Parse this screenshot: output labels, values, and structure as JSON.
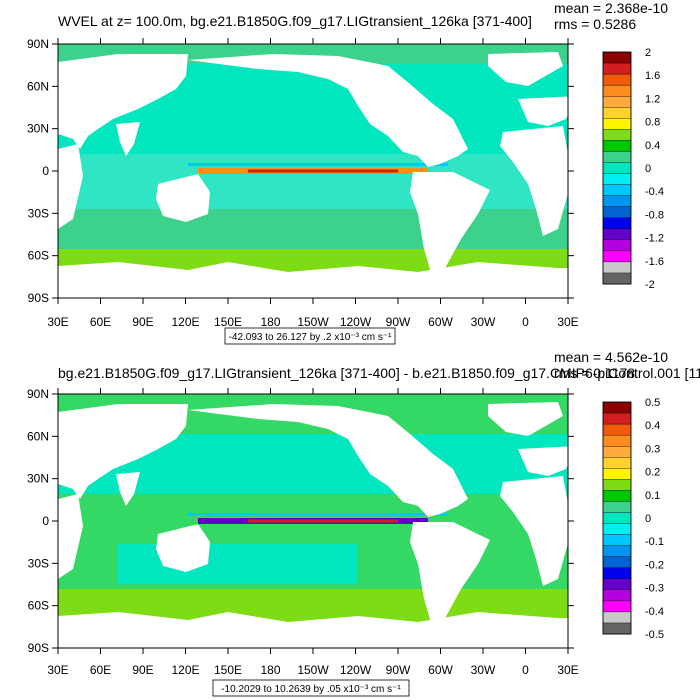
{
  "chart_data": [
    {
      "type": "heatmap",
      "title": "WVEL at z= 100.0m, bg.e21.B1850G.f09_g17.LIGtransient_126ka [371-400]",
      "stats": {
        "mean": "mean = 2.368e-10",
        "rms": "rms = 0.5286"
      },
      "x_ticks": [
        "30E",
        "60E",
        "90E",
        "120E",
        "150E",
        "180",
        "150W",
        "120W",
        "90W",
        "60W",
        "30W",
        "0",
        "30E"
      ],
      "y_ticks": [
        "90N",
        "60N",
        "30N",
        "0",
        "30S",
        "60S",
        "90S"
      ],
      "xlim": [
        30,
        390
      ],
      "ylim": [
        -90,
        90
      ],
      "range_label": "-42.093 to 26.127 by .2 x10⁻³ cm s⁻¹",
      "colorbar": {
        "labels": [
          "2",
          "1.6",
          "1.2",
          "0.8",
          "0.4",
          "0",
          "-0.4",
          "-0.8",
          "-1.2",
          "-1.6",
          "-2"
        ],
        "colors": [
          "#8b0000",
          "#d21e1e",
          "#f05a0a",
          "#ff8c1e",
          "#ffaa3c",
          "#ffd22d",
          "#fff500",
          "#7ddc14",
          "#00c800",
          "#3cd28c",
          "#00e6be",
          "#00f0f0",
          "#00c8ff",
          "#0096f0",
          "#0064d2",
          "#0000f0",
          "#6400c8",
          "#b400dc",
          "#ff00ff",
          "#c8c8c8",
          "#646464"
        ]
      }
    },
    {
      "type": "heatmap",
      "title": "bg.e21.B1850G.f09_g17.LIGtransient_126ka [371-400] - b.e21.B1850.f09_g17.CMIP6-piControl.001 [11",
      "stats": {
        "mean": "mean = 4.562e-10",
        "rms": "rms = 0.1178"
      },
      "x_ticks": [
        "30E",
        "60E",
        "90E",
        "120E",
        "150E",
        "180",
        "150W",
        "120W",
        "90W",
        "60W",
        "30W",
        "0",
        "30E"
      ],
      "y_ticks": [
        "90N",
        "60N",
        "30N",
        "0",
        "30S",
        "60S",
        "90S"
      ],
      "xlim": [
        30,
        390
      ],
      "ylim": [
        -90,
        90
      ],
      "range_label": "-10.2029 to 10.2639 by .05 x10⁻³ cm s⁻¹",
      "colorbar": {
        "labels": [
          "0.5",
          "0.4",
          "0.3",
          "0.2",
          "0.1",
          "0",
          "-0.1",
          "-0.2",
          "-0.3",
          "-0.4",
          "-0.5"
        ],
        "colors": [
          "#8b0000",
          "#d21e1e",
          "#f05a0a",
          "#ff8c1e",
          "#ffaa3c",
          "#ffd22d",
          "#fff500",
          "#7ddc14",
          "#00c800",
          "#3cd28c",
          "#00e6be",
          "#00f0f0",
          "#00c8ff",
          "#0096f0",
          "#0064d2",
          "#0000f0",
          "#6400c8",
          "#b400dc",
          "#ff00ff",
          "#c8c8c8",
          "#646464"
        ]
      }
    }
  ]
}
